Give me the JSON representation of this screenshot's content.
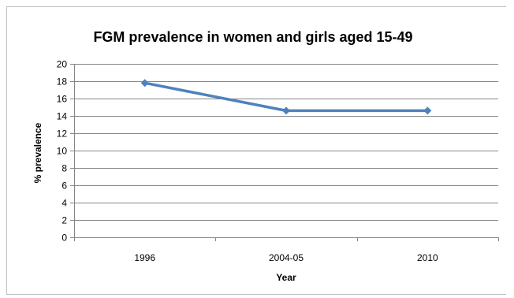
{
  "chart_data": {
    "type": "line",
    "title": "FGM prevalence in women and girls aged 15-49",
    "xlabel": "Year",
    "ylabel": "% prevalence",
    "categories": [
      "1996",
      "2004-05",
      "2010"
    ],
    "series": [
      {
        "values": [
          17.8,
          14.6,
          14.6
        ]
      }
    ],
    "ylim": [
      0,
      20
    ],
    "yticks": [
      "0",
      "2",
      "4",
      "6",
      "8",
      "10",
      "12",
      "14",
      "16",
      "18",
      "20"
    ],
    "grid": true,
    "legend": "none",
    "colors": {
      "series_line": "#4f81bd",
      "gridline": "#868686",
      "axis": "#868686",
      "frame": "#bfbfbf"
    },
    "marker": "diamond"
  }
}
